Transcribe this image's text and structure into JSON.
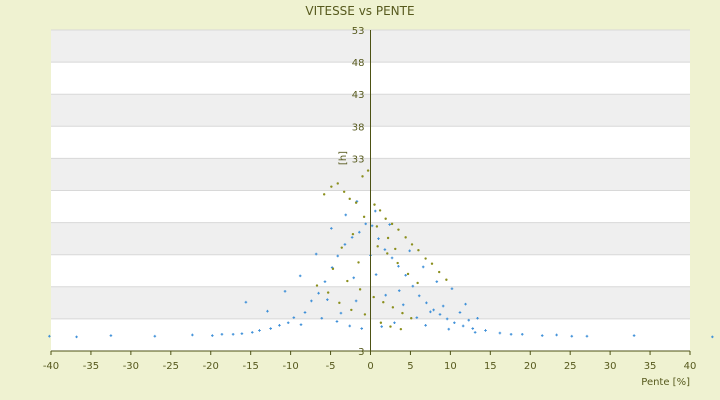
{
  "chart_data": {
    "type": "scatter",
    "title": "VITESSE vs PENTE",
    "xlabel": "Pente [%]",
    "ylabel": "[h]",
    "xlim": [
      -40,
      40
    ],
    "ylim": [
      3,
      53
    ],
    "x_ticks": [
      -40,
      -35,
      -30,
      -25,
      -20,
      -15,
      -10,
      -5,
      0,
      5,
      10,
      15,
      20,
      25,
      30,
      35,
      40
    ],
    "y_ticks": [
      3,
      8,
      13,
      18,
      23,
      28,
      33,
      38,
      43,
      48,
      53
    ],
    "y_tick_labels_shown": [
      3,
      33,
      38,
      43,
      48,
      53
    ],
    "grid": "horizontal alternating bands",
    "legend": "none",
    "colors": {
      "background": "#eff2d1",
      "plot_band_light": "#ffffff",
      "plot_band_dark": "#efefef",
      "gridline": "#d8d8d8",
      "axis": "#4d5214",
      "text": "#575a1e",
      "series_main": "#3d8fd8",
      "series_secondary": "#8b8f1e"
    },
    "series": [
      {
        "color": "#3d8fd8",
        "marker": "cross",
        "points": [
          [
            -40.2,
            5.3
          ],
          [
            -36.8,
            5.2
          ],
          [
            -32.5,
            5.4
          ],
          [
            -27.0,
            5.3
          ],
          [
            -22.3,
            5.5
          ],
          [
            -19.8,
            5.4
          ],
          [
            -18.6,
            5.6
          ],
          [
            -17.2,
            5.6
          ],
          [
            -16.1,
            5.7
          ],
          [
            -14.8,
            5.9
          ],
          [
            -13.9,
            6.2
          ],
          [
            -12.5,
            6.5
          ],
          [
            -11.4,
            7.0
          ],
          [
            -10.3,
            7.4
          ],
          [
            -9.6,
            8.2
          ],
          [
            -8.2,
            9.0
          ],
          [
            -7.4,
            10.8
          ],
          [
            -6.5,
            12.0
          ],
          [
            -5.7,
            13.8
          ],
          [
            -4.8,
            16.0
          ],
          [
            -4.1,
            17.8
          ],
          [
            -3.2,
            19.6
          ],
          [
            -2.3,
            20.7
          ],
          [
            -1.4,
            21.5
          ],
          [
            -0.6,
            22.8
          ],
          [
            0.2,
            22.5
          ],
          [
            1.0,
            20.5
          ],
          [
            1.8,
            18.8
          ],
          [
            2.7,
            17.5
          ],
          [
            3.5,
            16.2
          ],
          [
            4.4,
            14.8
          ],
          [
            5.3,
            13.1
          ],
          [
            6.1,
            11.6
          ],
          [
            7.0,
            10.5
          ],
          [
            7.9,
            9.4
          ],
          [
            8.7,
            8.7
          ],
          [
            9.6,
            8.0
          ],
          [
            10.5,
            7.4
          ],
          [
            11.6,
            6.9
          ],
          [
            12.8,
            6.5
          ],
          [
            14.4,
            6.2
          ],
          [
            16.2,
            5.8
          ],
          [
            17.6,
            5.6
          ],
          [
            19.0,
            5.6
          ],
          [
            21.5,
            5.4
          ],
          [
            23.3,
            5.5
          ],
          [
            25.2,
            5.3
          ],
          [
            27.1,
            5.3
          ],
          [
            33.0,
            5.4
          ],
          [
            42.8,
            5.2
          ],
          [
            -15.6,
            10.6
          ],
          [
            -12.9,
            9.2
          ],
          [
            -10.7,
            12.3
          ],
          [
            -8.8,
            14.7
          ],
          [
            -6.8,
            18.1
          ],
          [
            -4.9,
            22.1
          ],
          [
            -3.1,
            24.2
          ],
          [
            -1.7,
            26.3
          ],
          [
            0.6,
            24.8
          ],
          [
            2.4,
            22.7
          ],
          [
            4.9,
            18.6
          ],
          [
            6.6,
            16.1
          ],
          [
            8.3,
            13.8
          ],
          [
            10.2,
            12.7
          ],
          [
            11.9,
            10.3
          ],
          [
            13.4,
            8.1
          ],
          [
            -6.1,
            8.1
          ],
          [
            -4.2,
            7.6
          ],
          [
            -2.6,
            6.9
          ],
          [
            -1.1,
            6.5
          ],
          [
            1.4,
            6.8
          ],
          [
            3.0,
            7.4
          ],
          [
            5.8,
            8.2
          ],
          [
            7.5,
            9.1
          ],
          [
            9.1,
            10.0
          ],
          [
            11.2,
            9.0
          ],
          [
            12.3,
            7.8
          ],
          [
            -2.1,
            14.4
          ],
          [
            0.7,
            14.9
          ],
          [
            3.6,
            12.4
          ],
          [
            -5.4,
            11.0
          ],
          [
            -8.7,
            7.1
          ],
          [
            -1.8,
            10.8
          ],
          [
            1.9,
            11.7
          ],
          [
            4.1,
            10.2
          ],
          [
            6.9,
            7.0
          ],
          [
            9.8,
            6.4
          ],
          [
            13.1,
            5.9
          ],
          [
            -3.7,
            8.9
          ],
          [
            0.0,
            17.9
          ]
        ]
      },
      {
        "color": "#8b8f1e",
        "marker": "dot",
        "points": [
          [
            -5.8,
            27.4
          ],
          [
            -4.9,
            28.6
          ],
          [
            -4.1,
            29.1
          ],
          [
            -3.3,
            27.8
          ],
          [
            -2.6,
            26.7
          ],
          [
            -1.8,
            26.1
          ],
          [
            -1.0,
            30.2
          ],
          [
            -0.3,
            31.1
          ],
          [
            0.5,
            25.8
          ],
          [
            1.2,
            24.9
          ],
          [
            1.9,
            23.6
          ],
          [
            2.7,
            22.8
          ],
          [
            3.5,
            21.9
          ],
          [
            4.4,
            20.7
          ],
          [
            5.2,
            19.6
          ],
          [
            6.0,
            18.7
          ],
          [
            6.9,
            17.4
          ],
          [
            7.7,
            16.6
          ],
          [
            8.6,
            15.3
          ],
          [
            9.5,
            14.1
          ],
          [
            -3.6,
            19.1
          ],
          [
            -2.2,
            21.2
          ],
          [
            -0.8,
            23.9
          ],
          [
            0.8,
            22.4
          ],
          [
            2.1,
            18.2
          ],
          [
            3.4,
            16.7
          ],
          [
            4.7,
            15.0
          ],
          [
            5.9,
            13.6
          ],
          [
            -4.7,
            15.8
          ],
          [
            -2.9,
            13.9
          ],
          [
            -1.3,
            12.6
          ],
          [
            0.4,
            11.4
          ],
          [
            1.6,
            10.6
          ],
          [
            2.8,
            9.8
          ],
          [
            4.0,
            8.9
          ],
          [
            5.1,
            8.1
          ],
          [
            -1.5,
            16.8
          ],
          [
            0.9,
            19.3
          ],
          [
            2.2,
            20.6
          ],
          [
            3.1,
            18.9
          ],
          [
            -0.7,
            8.7
          ],
          [
            1.3,
            7.4
          ],
          [
            2.5,
            6.8
          ],
          [
            3.8,
            6.4
          ],
          [
            -2.4,
            9.4
          ],
          [
            -3.9,
            10.5
          ],
          [
            -5.3,
            12.1
          ],
          [
            -6.7,
            13.2
          ]
        ]
      }
    ]
  }
}
